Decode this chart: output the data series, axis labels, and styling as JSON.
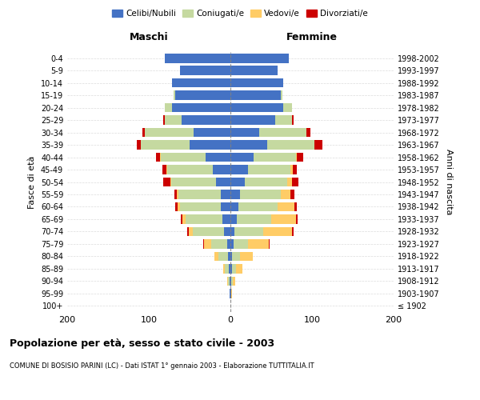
{
  "age_groups": [
    "100+",
    "95-99",
    "90-94",
    "85-89",
    "80-84",
    "75-79",
    "70-74",
    "65-69",
    "60-64",
    "55-59",
    "50-54",
    "45-49",
    "40-44",
    "35-39",
    "30-34",
    "25-29",
    "20-24",
    "15-19",
    "10-14",
    "5-9",
    "0-4"
  ],
  "birth_years": [
    "≤ 1902",
    "1903-1907",
    "1908-1912",
    "1913-1917",
    "1918-1922",
    "1923-1927",
    "1928-1932",
    "1933-1937",
    "1938-1942",
    "1943-1947",
    "1948-1952",
    "1953-1957",
    "1958-1962",
    "1963-1967",
    "1968-1972",
    "1973-1977",
    "1978-1982",
    "1983-1987",
    "1988-1992",
    "1993-1997",
    "1998-2002"
  ],
  "males": {
    "celibi": [
      0,
      1,
      1,
      2,
      3,
      4,
      8,
      10,
      12,
      12,
      18,
      22,
      30,
      50,
      45,
      60,
      72,
      68,
      72,
      62,
      80
    ],
    "coniugati": [
      0,
      0,
      2,
      5,
      12,
      20,
      38,
      45,
      50,
      52,
      55,
      55,
      55,
      60,
      60,
      20,
      8,
      2,
      0,
      0,
      0
    ],
    "vedovi": [
      0,
      0,
      1,
      2,
      5,
      8,
      5,
      4,
      3,
      2,
      1,
      1,
      1,
      0,
      0,
      0,
      0,
      0,
      0,
      0,
      0
    ],
    "divorziati": [
      0,
      0,
      0,
      0,
      0,
      1,
      2,
      2,
      3,
      3,
      8,
      5,
      5,
      5,
      3,
      2,
      0,
      0,
      0,
      0,
      0
    ]
  },
  "females": {
    "nubili": [
      0,
      1,
      1,
      2,
      2,
      4,
      5,
      8,
      10,
      12,
      18,
      22,
      28,
      45,
      35,
      55,
      65,
      62,
      65,
      58,
      72
    ],
    "coniugate": [
      0,
      0,
      2,
      5,
      10,
      18,
      35,
      42,
      48,
      50,
      52,
      52,
      52,
      58,
      58,
      20,
      10,
      2,
      0,
      0,
      0
    ],
    "vedove": [
      0,
      1,
      3,
      8,
      15,
      25,
      35,
      30,
      20,
      12,
      5,
      2,
      1,
      0,
      0,
      0,
      0,
      0,
      0,
      0,
      0
    ],
    "divorziate": [
      0,
      0,
      0,
      0,
      0,
      1,
      2,
      2,
      3,
      4,
      8,
      5,
      8,
      10,
      5,
      2,
      0,
      0,
      0,
      0,
      0
    ]
  },
  "color_celibi": "#4472C4",
  "color_coniugati": "#c5d9a0",
  "color_vedovi": "#ffcc66",
  "color_divorziati": "#cc0000",
  "xlim": 200,
  "title": "Popolazione per età, sesso e stato civile - 2003",
  "subtitle": "COMUNE DI BOSISIO PARINI (LC) - Dati ISTAT 1° gennaio 2003 - Elaborazione TUTTITALIA.IT",
  "ylabel": "Fasce di età",
  "ylabel_right": "Anni di nascita",
  "xlabel_left": "Maschi",
  "xlabel_right": "Femmine",
  "legend_labels": [
    "Celibi/Nubili",
    "Coniugati/e",
    "Vedovi/e",
    "Divorziati/e"
  ]
}
